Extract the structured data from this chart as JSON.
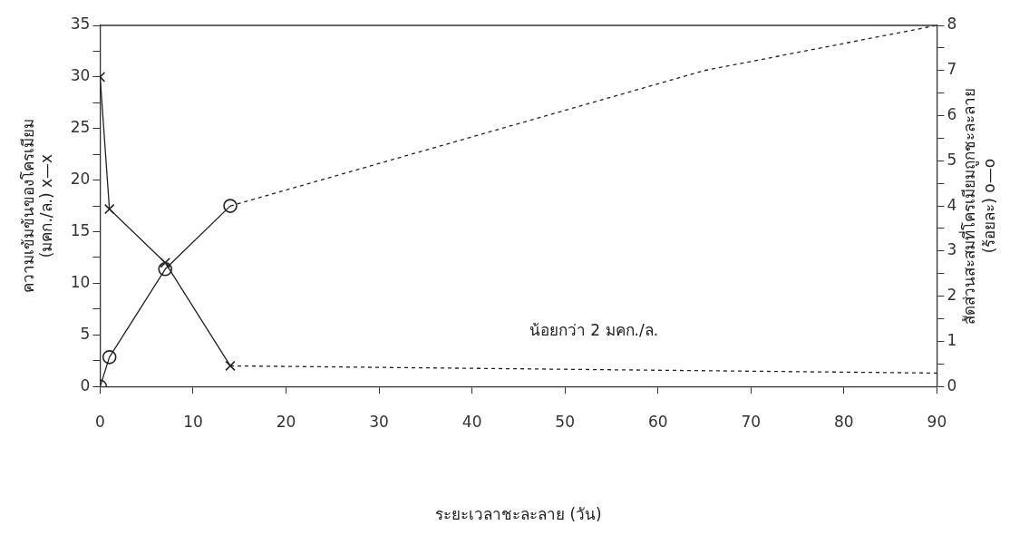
{
  "chart_data": {
    "type": "line",
    "xlabel": "ระยะเวลาชะละลาย (วัน)",
    "ylabel": "ความเข้มข้นของโครเมียม\n(มคก./ล.) x—x",
    "y2label": "สัดส่วนสะสมที่โครเมียมถูกชะละลาย\n(ร้อยละ) o—o",
    "xlim": [
      0,
      90
    ],
    "xticks": [
      0,
      10,
      20,
      30,
      40,
      50,
      60,
      70,
      80,
      90
    ],
    "ylim": [
      0,
      35
    ],
    "yticks": [
      0,
      {
        "value": 2.5,
        "label": null
      },
      5,
      {
        "value": 7.5,
        "label": null
      },
      10,
      {
        "value": 12.5,
        "label": null
      },
      15,
      {
        "value": 17.5,
        "label": null
      },
      20,
      {
        "value": 22.5,
        "label": null
      },
      25,
      {
        "value": 27.5,
        "label": null
      },
      30,
      {
        "value": 32.5,
        "label": null
      },
      35
    ],
    "y2lim": [
      0,
      8
    ],
    "y2ticks": [
      0,
      {
        "value": 0.5,
        "label": null
      },
      1,
      {
        "value": 1.5,
        "label": null
      },
      2,
      {
        "value": 2.5,
        "label": null
      },
      3,
      {
        "value": 3.5,
        "label": null
      },
      4,
      {
        "value": 4.5,
        "label": null
      },
      5,
      {
        "value": 5.5,
        "label": null
      },
      6,
      {
        "value": 6.5,
        "label": null
      },
      7,
      {
        "value": 7.5,
        "label": null
      },
      8
    ],
    "grid": false,
    "legend": false,
    "annotations": [
      "น้อยกว่า 2 มคก./ล."
    ],
    "series": [
      {
        "color": "#222222",
        "x": [
          0,
          1,
          7,
          14
        ],
        "values": [
          30,
          17.2,
          12,
          2
        ],
        "marker": "cross",
        "line_style": "solid"
      },
      {
        "color": "#222222",
        "x": [
          14,
          90
        ],
        "values": [
          2,
          1.3
        ],
        "marker": "none",
        "line_style": "dashed"
      },
      {
        "color": "#222222",
        "x": [
          0,
          1,
          7,
          14
        ],
        "values": [
          0,
          0.65,
          2.6,
          4
        ],
        "marker": "circle",
        "line_style": "solid",
        "axis": "y2"
      },
      {
        "color": "#222222",
        "x": [
          14,
          65,
          90
        ],
        "values": [
          4,
          7,
          8
        ],
        "marker": "none",
        "line_style": "dashed",
        "axis": "y2"
      }
    ]
  }
}
